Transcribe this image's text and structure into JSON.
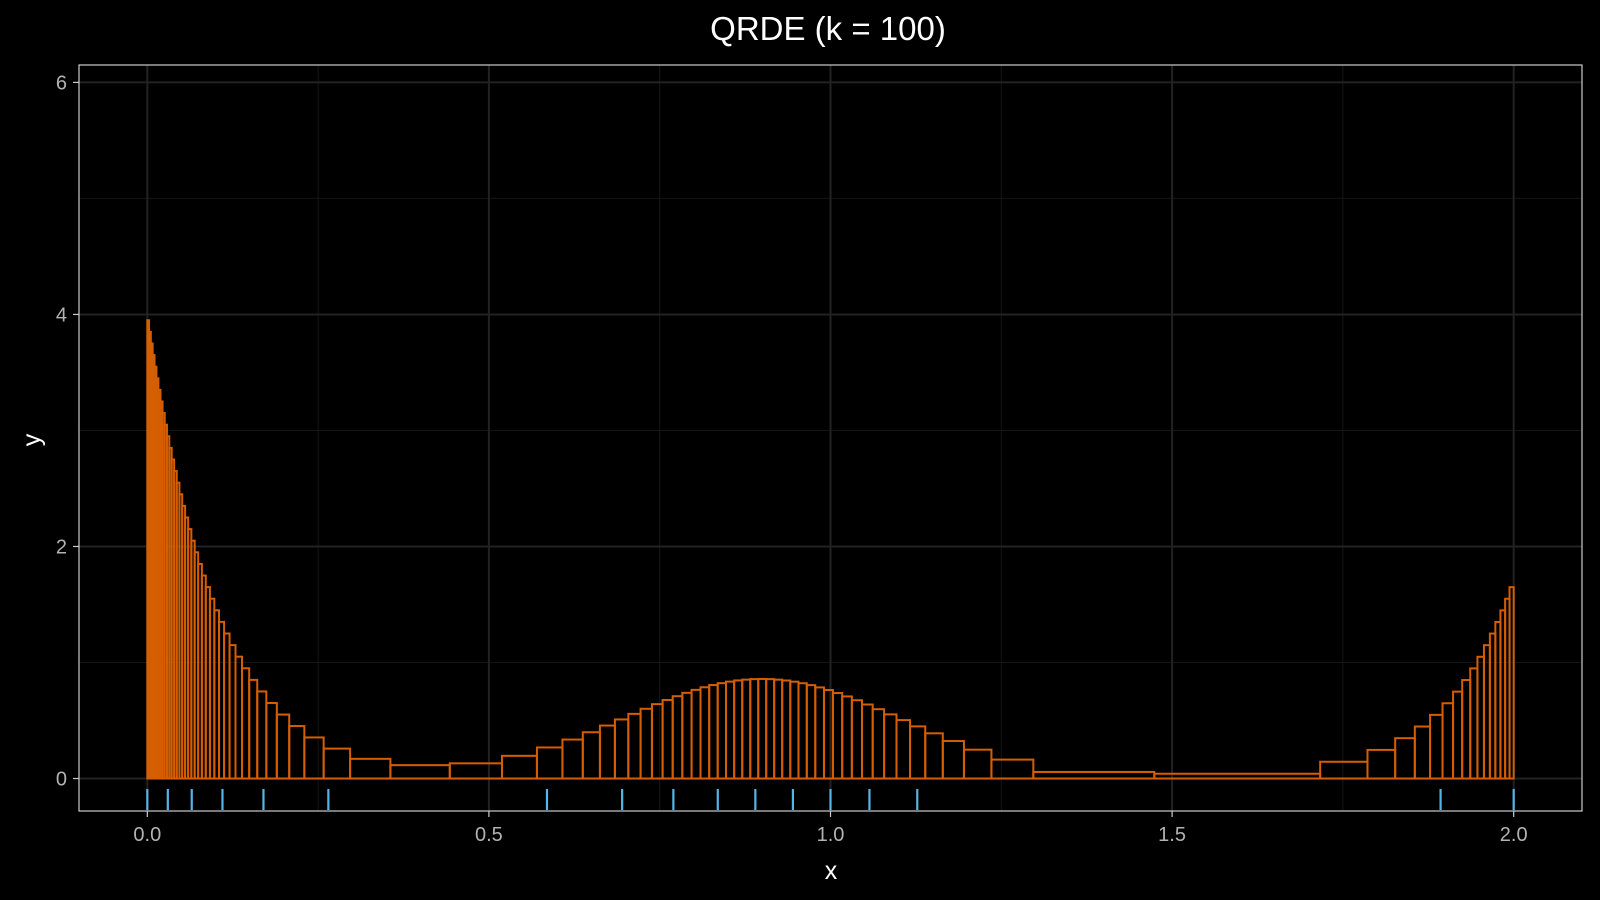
{
  "chart_data": {
    "type": "histogram",
    "title": "QRDE (k = 100)",
    "xlabel": "x",
    "ylabel": "y",
    "xlim": [
      -0.1,
      2.1
    ],
    "ylim": [
      -0.28,
      6.15
    ],
    "x_ticks": [
      0.0,
      0.5,
      1.0,
      1.5,
      2.0
    ],
    "x_tick_labels": [
      "0.0",
      "0.5",
      "1.0",
      "1.5",
      "2.0"
    ],
    "y_ticks": [
      0,
      2,
      4,
      6
    ],
    "y_tick_labels": [
      "0",
      "2",
      "4",
      "6"
    ],
    "grid": true,
    "legend": "none",
    "colors": {
      "background": "#000000",
      "panel_border": "#cccccc",
      "grid": "#222222",
      "bars": "#d55e00",
      "rug": "#56b4e9",
      "text": "#ffffff",
      "tick_text": "#b3b3b3"
    },
    "series": [
      {
        "kind": "step-histogram",
        "color": "#d55e00",
        "bin_count": 100
      },
      {
        "kind": "rug",
        "color": "#56b4e9",
        "x": [
          0.0,
          0.03,
          0.065,
          0.11,
          0.17,
          0.265,
          0.585,
          0.695,
          0.77,
          0.835,
          0.89,
          0.945,
          1.0,
          1.057,
          1.127,
          1.893,
          2.0
        ]
      }
    ]
  }
}
